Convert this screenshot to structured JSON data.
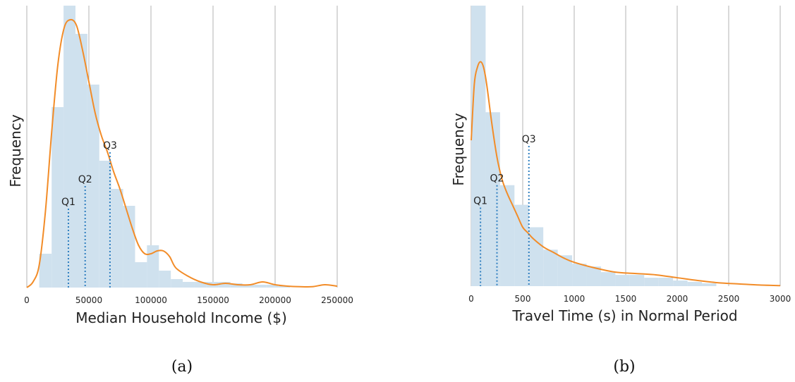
{
  "chart_data": [
    {
      "type": "bar",
      "panel_caption": "(a)",
      "xlabel": "Median Household Income ($)",
      "ylabel": "Frequency",
      "xlim": [
        0,
        250000
      ],
      "ylim": [
        0,
        1.0
      ],
      "xticks": [
        0,
        50000,
        100000,
        150000,
        200000,
        250000
      ],
      "xtick_labels": [
        "0",
        "50000",
        "100000",
        "150000",
        "200000",
        "250000"
      ],
      "grid": "vertical",
      "bin_edges": [
        10000,
        20000,
        29600,
        39200,
        48800,
        58400,
        68000,
        77600,
        87200,
        96800,
        106400,
        116000,
        125600,
        135200,
        144800,
        154400,
        164000,
        173600,
        183200,
        192800,
        202400,
        212000
      ],
      "bar_heights": [
        0.12,
        0.64,
        1.0,
        0.9,
        0.72,
        0.45,
        0.35,
        0.29,
        0.09,
        0.15,
        0.06,
        0.03,
        0.02,
        0.02,
        0.02,
        0.02,
        0.015,
        0.01,
        0.01,
        0.01,
        0.005
      ],
      "kde": {
        "x": [
          0,
          5000,
          10000,
          15000,
          20000,
          25000,
          30000,
          35000,
          40000,
          45000,
          50000,
          55000,
          60000,
          65000,
          70000,
          75000,
          80000,
          85000,
          90000,
          95000,
          100000,
          105000,
          110000,
          115000,
          120000,
          130000,
          140000,
          150000,
          160000,
          170000,
          180000,
          190000,
          200000,
          210000,
          220000,
          230000,
          240000,
          250000
        ],
        "y": [
          0.0,
          0.02,
          0.08,
          0.27,
          0.55,
          0.79,
          0.92,
          0.95,
          0.93,
          0.84,
          0.73,
          0.62,
          0.54,
          0.48,
          0.41,
          0.35,
          0.28,
          0.21,
          0.15,
          0.12,
          0.12,
          0.13,
          0.13,
          0.11,
          0.07,
          0.04,
          0.02,
          0.01,
          0.015,
          0.01,
          0.01,
          0.02,
          0.01,
          0.005,
          0.003,
          0.003,
          0.01,
          0.005
        ]
      },
      "quartiles": [
        {
          "label": "Q1",
          "x": 33500,
          "y": 0.28
        },
        {
          "label": "Q2",
          "x": 47000,
          "y": 0.36
        },
        {
          "label": "Q3",
          "x": 67000,
          "y": 0.48
        }
      ]
    },
    {
      "type": "bar",
      "panel_caption": "(b)",
      "xlabel": "Travel Time (s) in Normal Period",
      "ylabel": "Frequency",
      "xlim": [
        0,
        3000
      ],
      "ylim": [
        0,
        1.0
      ],
      "xticks": [
        0,
        500,
        1000,
        1500,
        2000,
        2500,
        3000
      ],
      "xtick_labels": [
        "0",
        "500",
        "1000",
        "1500",
        "2000",
        "2500",
        "3000"
      ],
      "grid": "vertical",
      "bin_edges": [
        0,
        140,
        280,
        420,
        560,
        700,
        840,
        980,
        1120,
        1260,
        1400,
        1540,
        1680,
        1820,
        1960,
        2100,
        2240,
        2380
      ],
      "bar_heights": [
        1.0,
        0.62,
        0.36,
        0.29,
        0.21,
        0.13,
        0.11,
        0.08,
        0.07,
        0.05,
        0.04,
        0.04,
        0.03,
        0.03,
        0.02,
        0.015,
        0.01
      ],
      "kde": {
        "x": [
          0,
          30,
          60,
          90,
          120,
          150,
          200,
          250,
          300,
          350,
          400,
          450,
          500,
          550,
          600,
          700,
          800,
          900,
          1000,
          1200,
          1400,
          1600,
          1800,
          2000,
          2200,
          2400,
          2600,
          2800,
          3000
        ],
        "y": [
          0.52,
          0.72,
          0.78,
          0.8,
          0.78,
          0.72,
          0.58,
          0.46,
          0.38,
          0.33,
          0.29,
          0.25,
          0.21,
          0.19,
          0.17,
          0.14,
          0.12,
          0.1,
          0.085,
          0.065,
          0.05,
          0.045,
          0.04,
          0.03,
          0.02,
          0.012,
          0.008,
          0.004,
          0.002
        ]
      },
      "quartiles": [
        {
          "label": "Q1",
          "x": 90,
          "y": 0.28
        },
        {
          "label": "Q2",
          "x": 250,
          "y": 0.36
        },
        {
          "label": "Q3",
          "x": 560,
          "y": 0.5
        }
      ]
    }
  ],
  "colors": {
    "bar": "#cfe1ee",
    "kde": "#f28c28",
    "quartile_line": "#2f7fc0",
    "grid": "#b3b3b3",
    "text": "#222222"
  }
}
